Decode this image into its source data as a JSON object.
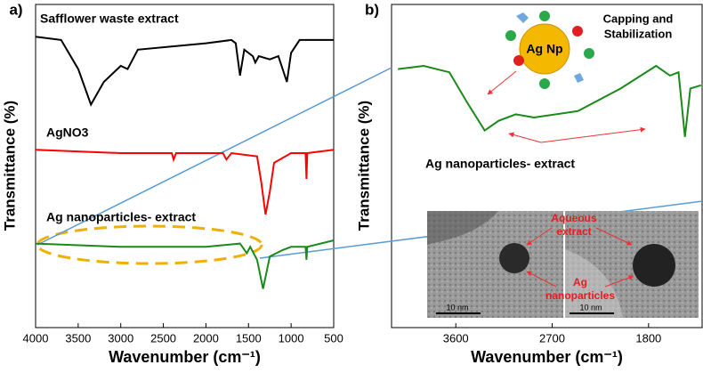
{
  "chart_data": [
    {
      "type": "line",
      "panel_label": "a)",
      "xlabel": "Wavenumber (cm⁻¹)",
      "ylabel": "Transmittance (%)",
      "xlim": [
        4000,
        500
      ],
      "xticks": [
        4000,
        3500,
        3000,
        2500,
        2000,
        1500,
        1000,
        500
      ],
      "ylim": [
        0,
        100
      ],
      "series": [
        {
          "name": "Safflower waste extract",
          "color": "#000000",
          "x": [
            4000,
            3700,
            3500,
            3350,
            3200,
            3000,
            2920,
            2800,
            2000,
            1700,
            1650,
            1600,
            1550,
            1450,
            1420,
            1380,
            1250,
            1150,
            1050,
            1000,
            900,
            500
          ],
          "values": [
            90,
            89,
            80,
            69,
            76,
            81,
            80,
            86,
            88,
            89,
            88,
            78,
            86,
            84,
            82,
            84,
            83,
            84,
            76,
            85,
            89,
            89
          ]
        },
        {
          "name": "AgNO3",
          "color": "#ff0000",
          "x": [
            4000,
            3000,
            2400,
            2380,
            2350,
            1800,
            1760,
            1700,
            1400,
            1350,
            1300,
            1250,
            1200,
            1000,
            830,
            820,
            810,
            500
          ],
          "values": [
            55,
            54,
            54,
            52,
            54,
            54,
            52,
            54,
            53,
            45,
            35,
            42,
            51,
            54,
            54,
            46,
            54,
            55
          ]
        },
        {
          "name": "Ag nanoparticles- extract",
          "color": "#1a8a1a",
          "x": [
            4000,
            3000,
            2000,
            1600,
            1520,
            1480,
            1400,
            1330,
            1250,
            1100,
            1000,
            830,
            820,
            810,
            500
          ],
          "values": [
            26,
            25,
            25,
            26,
            23,
            25,
            21,
            12,
            22,
            24,
            25,
            25,
            21,
            25,
            27
          ]
        }
      ]
    },
    {
      "type": "line",
      "panel_label": "b)",
      "xlabel": "Wavenumber (cm⁻¹)",
      "ylabel": "Transmittance (%)",
      "xlim": [
        4200,
        1300
      ],
      "xticks": [
        3600,
        2700,
        1800
      ],
      "ylim": [
        0,
        100
      ],
      "series": [
        {
          "name": "Ag nanoparticles- extract",
          "color": "#1a8a1a",
          "x": [
            4140,
            3900,
            3660,
            3500,
            3330,
            3200,
            3040,
            2870,
            2460,
            2060,
            1730,
            1600,
            1520,
            1460,
            1410,
            1310
          ],
          "values": [
            80,
            81,
            79,
            70,
            61,
            64,
            66,
            65,
            67,
            74,
            81,
            78,
            79,
            59,
            74,
            75
          ]
        }
      ],
      "annotations": {
        "particle": "Ag Np",
        "capping": [
          "Capping and",
          "Stabilization"
        ],
        "inset_extract": [
          "Aqueous",
          "extract"
        ],
        "inset_particles": [
          "Ag",
          "nanoparticles"
        ],
        "scale_bars": [
          "10 nm",
          "10 nm"
        ]
      }
    }
  ]
}
